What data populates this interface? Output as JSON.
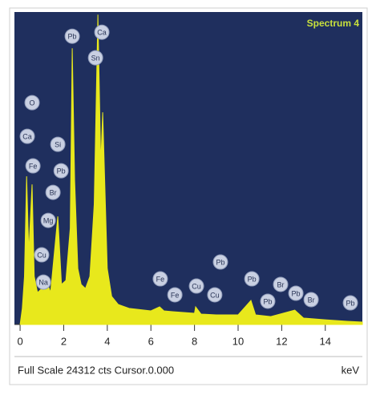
{
  "chart_data": {
    "type": "area",
    "title": "Spectrum 4",
    "status_text": "Full Scale 24312 cts Cursor.0.000",
    "x_label": "keV",
    "color": "#e8e81c",
    "background": "#1f2f5e",
    "xlim": [
      -0.26,
      15.7
    ],
    "xticks": [
      0,
      2,
      4,
      6,
      8,
      10,
      12,
      14
    ],
    "ylim": [
      0,
      24312
    ],
    "x": [
      0,
      0.1,
      0.2,
      0.3,
      0.4,
      0.55,
      0.65,
      0.8,
      1.0,
      1.2,
      1.4,
      1.73,
      1.9,
      2.1,
      2.3,
      2.39,
      2.5,
      2.65,
      2.8,
      3.0,
      3.2,
      3.4,
      3.57,
      3.7,
      3.79,
      4.0,
      4.2,
      4.5,
      5,
      6,
      6.4,
      6.6,
      7,
      8,
      8.05,
      8.3,
      9,
      10,
      10.59,
      10.8,
      11.5,
      12.6,
      13,
      14,
      15,
      15.7
    ],
    "values": [
      0,
      1250,
      3740,
      11530,
      5610,
      10900,
      3740,
      2490,
      2800,
      3430,
      2490,
      8410,
      3120,
      3430,
      7480,
      21490,
      11210,
      4360,
      3120,
      2800,
      3740,
      9350,
      24110,
      12460,
      16510,
      4360,
      2180,
      1560,
      1250,
      1060,
      1370,
      1060,
      1000,
      870,
      1370,
      810,
      750,
      750,
      1870,
      750,
      620,
      1120,
      500,
      370,
      250,
      190
    ],
    "peak_labels": [
      {
        "label": "Pb",
        "x": 2.39,
        "y": 22430
      },
      {
        "label": "Ca",
        "x": 3.75,
        "y": 22740
      },
      {
        "label": "Sn",
        "x": 3.46,
        "y": 20750
      },
      {
        "label": "O",
        "x": 0.55,
        "y": 17260
      },
      {
        "label": "Ca",
        "x": 0.33,
        "y": 14640
      },
      {
        "label": "Fe",
        "x": 0.59,
        "y": 12340
      },
      {
        "label": "Si",
        "x": 1.73,
        "y": 14020
      },
      {
        "label": "Pb",
        "x": 1.88,
        "y": 11960
      },
      {
        "label": "Br",
        "x": 1.51,
        "y": 10280
      },
      {
        "label": "Mg",
        "x": 1.29,
        "y": 8100
      },
      {
        "label": "Cu",
        "x": 0.99,
        "y": 5420
      },
      {
        "label": "Na",
        "x": 1.07,
        "y": 3300
      },
      {
        "label": "Fe",
        "x": 6.43,
        "y": 3550
      },
      {
        "label": "Fe",
        "x": 7.1,
        "y": 2310
      },
      {
        "label": "Cu",
        "x": 8.09,
        "y": 2990
      },
      {
        "label": "Cu",
        "x": 8.93,
        "y": 2310
      },
      {
        "label": "Pb",
        "x": 9.19,
        "y": 4860
      },
      {
        "label": "Pb",
        "x": 10.63,
        "y": 3550
      },
      {
        "label": "Pb",
        "x": 11.36,
        "y": 1810
      },
      {
        "label": "Br",
        "x": 11.95,
        "y": 3120
      },
      {
        "label": "Pb",
        "x": 12.65,
        "y": 2430
      },
      {
        "label": "Br",
        "x": 13.35,
        "y": 1930
      },
      {
        "label": "Pb",
        "x": 15.15,
        "y": 1680
      }
    ]
  }
}
